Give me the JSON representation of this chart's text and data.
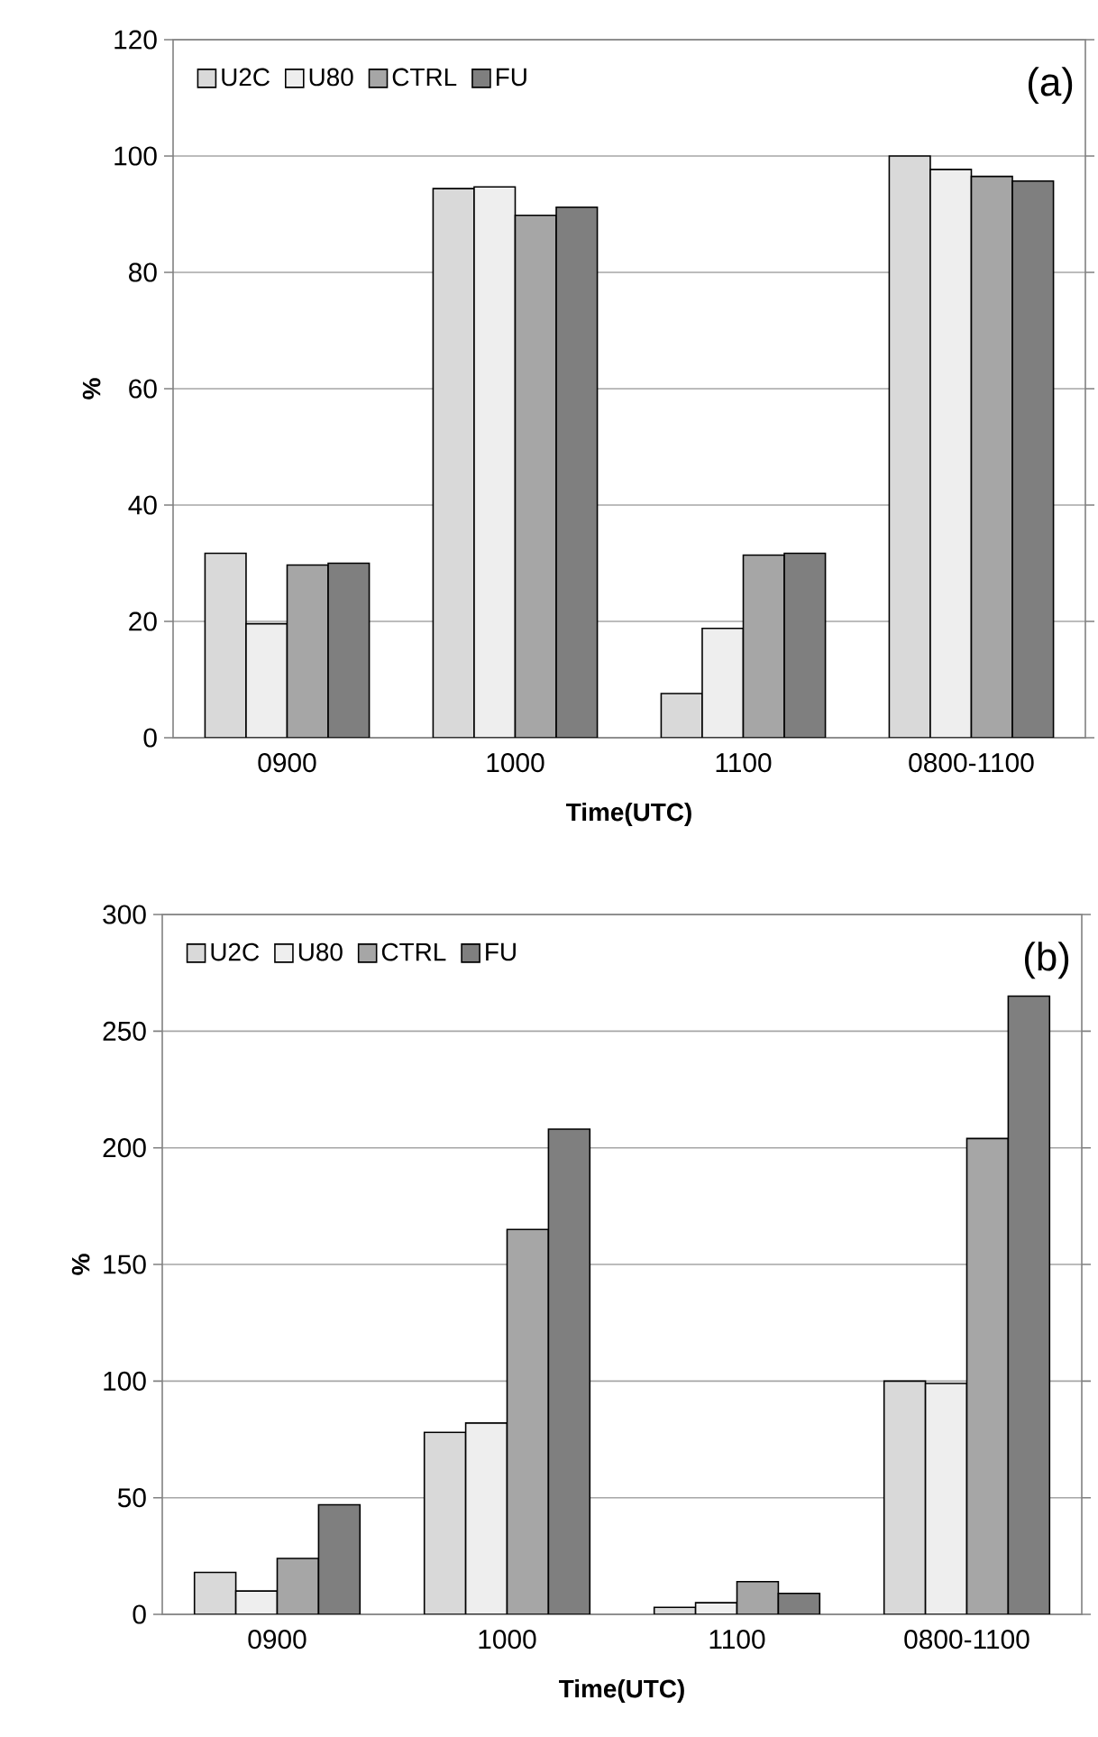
{
  "chart_data": [
    {
      "type": "bar",
      "xlabel": "Time(UTC)",
      "ylabel": "%",
      "annotations": [
        "(a)"
      ],
      "categories": [
        "0900",
        "1000",
        "1100",
        "0800-1100"
      ],
      "series": [
        {
          "name": "U2C",
          "color": "#d9d9d9",
          "values": [
            31.7,
            94.4,
            7.6,
            100
          ]
        },
        {
          "name": "U80",
          "color": "#eeeeee",
          "values": [
            19.6,
            94.7,
            18.8,
            97.7
          ]
        },
        {
          "name": "CTRL",
          "color": "#a6a6a6",
          "values": [
            29.7,
            89.8,
            31.4,
            96.5
          ]
        },
        {
          "name": "FU",
          "color": "#7f7f7f",
          "values": [
            30.0,
            91.2,
            31.7,
            95.7
          ]
        }
      ],
      "ylim": [
        0,
        120
      ],
      "yticks": [
        0,
        20,
        40,
        60,
        80,
        100,
        120
      ],
      "grid": "y",
      "legend": "top left"
    },
    {
      "type": "bar",
      "xlabel": "Time(UTC)",
      "ylabel": "%",
      "annotations": [
        "(b)"
      ],
      "categories": [
        "0900",
        "1000",
        "1100",
        "0800-1100"
      ],
      "series": [
        {
          "name": "U2C",
          "color": "#d9d9d9",
          "values": [
            18,
            78,
            3,
            100
          ]
        },
        {
          "name": "U80",
          "color": "#eeeeee",
          "values": [
            10,
            82,
            5,
            99
          ]
        },
        {
          "name": "CTRL",
          "color": "#a6a6a6",
          "values": [
            24,
            165,
            14,
            204
          ]
        },
        {
          "name": "FU",
          "color": "#7f7f7f",
          "values": [
            47,
            208,
            9,
            265
          ]
        }
      ],
      "ylim": [
        0,
        300
      ],
      "yticks": [
        0,
        50,
        100,
        150,
        200,
        250,
        300
      ],
      "grid": "y",
      "legend": "top left"
    }
  ]
}
